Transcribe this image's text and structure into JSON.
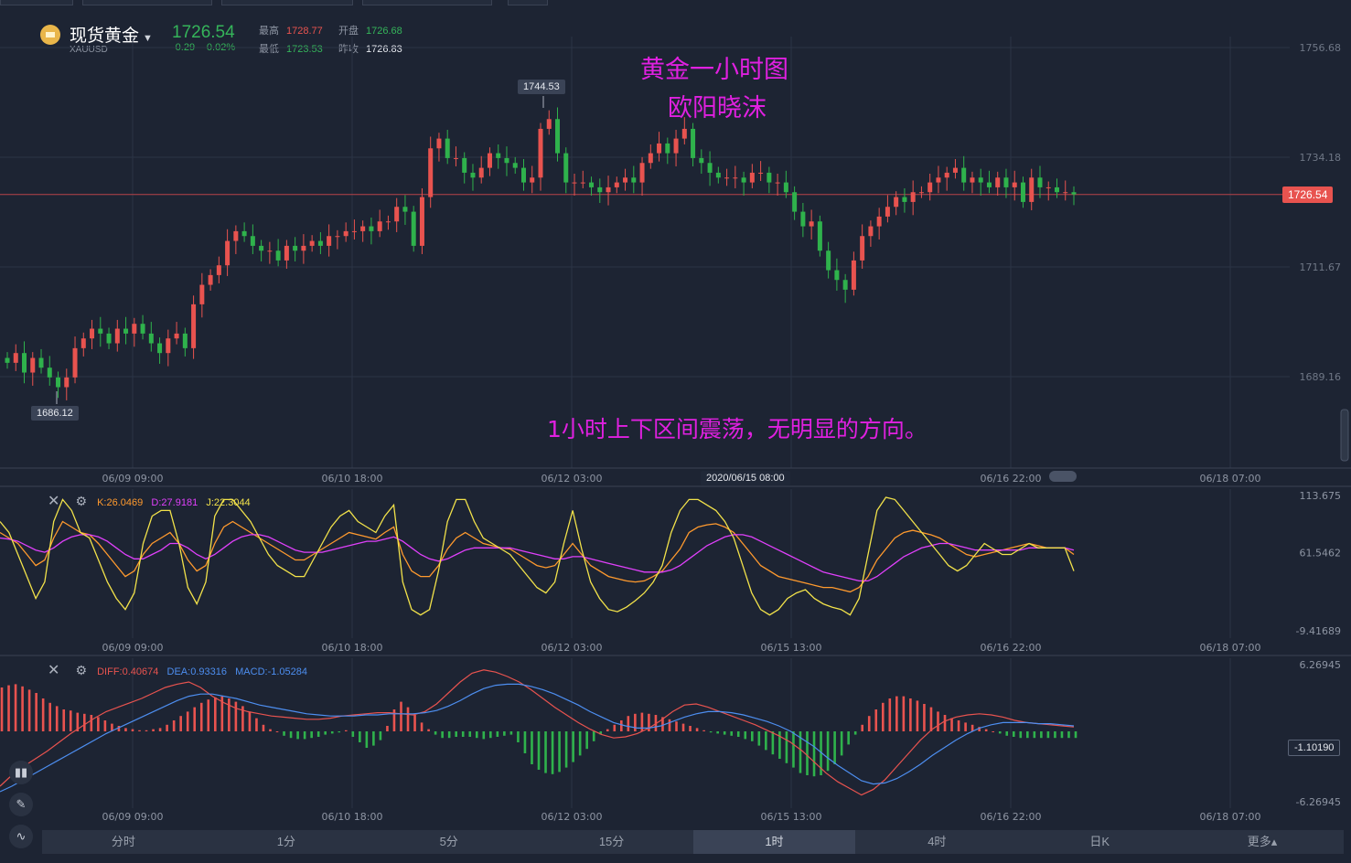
{
  "header": {
    "name": "现货黄金",
    "symbol": "XAUUSD",
    "price": "1726.54",
    "change": "-0.29",
    "change_pct": "-0.02%",
    "high_label": "最高",
    "high": "1728.77",
    "open_label": "开盘",
    "open": "1726.68",
    "low_label": "最低",
    "low": "1723.53",
    "prev_label": "昨收",
    "prev": "1726.83"
  },
  "annotations": {
    "title_line1": "黄金一小时图",
    "title_line2": "欧阳晓沫",
    "comment": "1小时上下区间震荡，无明显的方向。"
  },
  "price_axis": [
    "1756.68",
    "1734.18",
    "1711.67",
    "1689.16"
  ],
  "current_price_tag": "1726.54",
  "max_label": "1744.53",
  "min_label": "1686.12",
  "crosshair_time": "2020/06/15 08:00",
  "main_time_ticks": [
    "06/09 09:00",
    "06/10 18:00",
    "06/12 03:00",
    "",
    "06/16 22:00",
    "06/18 07:00"
  ],
  "sub_time_ticks": [
    "06/09 09:00",
    "06/10 18:00",
    "06/12 03:00",
    "06/15 13:00",
    "06/16 22:00",
    "06/18 07:00"
  ],
  "kdj": {
    "k": "K:26.0469",
    "d": "D:27.9181",
    "j": "J:22.3044",
    "axis": [
      "113.675",
      "61.5462",
      "-9.41689"
    ]
  },
  "macd": {
    "diff": "DIFF:0.40674",
    "dea": "DEA:0.93316",
    "macd": "MACD:-1.05284",
    "axis": [
      "6.26945",
      "-1.10190",
      "-6.26945"
    ]
  },
  "tabs": [
    "分时",
    "1分",
    "5分",
    "15分",
    "1时",
    "4时",
    "日K",
    "更多▴"
  ],
  "active_tab": "1时",
  "colors": {
    "up": "#e8534f",
    "down": "#2fb24c",
    "k": "#ff9a2e",
    "d": "#e040fb",
    "j": "#f2e24a",
    "diff": "#e8534f",
    "dea": "#4d8ef0",
    "annotation": "#e020e0"
  },
  "chart_data": [
    {
      "type": "candlestick",
      "title": "",
      "series_name": "XAUUSD 1H",
      "ylim": [
        1680,
        1760
      ],
      "last": 1726.54,
      "high_marker": 1744.53,
      "low_marker": 1686.12,
      "closes": [
        1692,
        1694,
        1690,
        1693,
        1691,
        1689,
        1687,
        1689,
        1695,
        1697,
        1699,
        1698,
        1696,
        1699,
        1698,
        1700,
        1698,
        1696,
        1694,
        1697,
        1698,
        1695,
        1704,
        1708,
        1710,
        1712,
        1717,
        1719,
        1718,
        1716,
        1715,
        1715,
        1713,
        1716,
        1715,
        1716,
        1717,
        1716,
        1718,
        1718,
        1719,
        1719,
        1720,
        1719,
        1721,
        1721,
        1724,
        1723,
        1716,
        1726,
        1736,
        1738,
        1734,
        1734,
        1731,
        1730,
        1732,
        1735,
        1734,
        1733,
        1732,
        1729,
        1730,
        1740,
        1742,
        1735,
        1729,
        1729,
        1729,
        1728,
        1727,
        1728,
        1729,
        1730,
        1729,
        1733,
        1735,
        1737,
        1735,
        1738,
        1740,
        1734,
        1733,
        1731,
        1730,
        1730,
        1730,
        1729,
        1731,
        1731,
        1729,
        1729,
        1727,
        1723,
        1720,
        1721,
        1715,
        1711,
        1709,
        1707,
        1713,
        1718,
        1720,
        1722,
        1724,
        1726,
        1725,
        1727,
        1727,
        1729,
        1730,
        1731,
        1732,
        1729,
        1730,
        1729,
        1728,
        1730,
        1728,
        1729,
        1725,
        1730,
        1728,
        1728,
        1727,
        1727,
        1726.54
      ],
      "note": "hourly candles approximated from the picture"
    },
    {
      "type": "line",
      "title": "KDJ",
      "ylim": [
        -9.41689,
        113.675
      ],
      "series": [
        {
          "name": "K",
          "values": [
            80,
            75,
            70,
            60,
            50,
            55,
            75,
            90,
            85,
            80,
            78,
            70,
            60,
            50,
            40,
            45,
            60,
            70,
            75,
            80,
            70,
            55,
            45,
            50,
            70,
            85,
            90,
            85,
            80,
            75,
            70,
            65,
            60,
            55,
            55,
            60,
            65,
            70,
            75,
            80,
            78,
            76,
            74,
            80,
            85,
            60,
            45,
            40,
            40,
            50,
            65,
            75,
            80,
            75,
            70,
            68,
            66,
            65,
            60,
            55,
            50,
            48,
            50,
            60,
            70,
            60,
            50,
            45,
            40,
            38,
            36,
            35,
            36,
            40,
            45,
            55,
            65,
            80,
            85,
            87,
            88,
            85,
            80,
            70,
            60,
            50,
            45,
            40,
            38,
            36,
            34,
            32,
            30,
            30,
            28,
            26,
            30,
            40,
            55,
            65,
            75,
            80,
            82,
            80,
            78,
            75,
            70,
            65,
            60,
            58,
            60,
            62,
            64,
            66,
            68,
            70,
            68,
            66,
            66,
            66,
            60
          ]
        },
        {
          "name": "D",
          "values": [
            75,
            74,
            72,
            68,
            64,
            62,
            66,
            72,
            76,
            78,
            78,
            76,
            72,
            66,
            60,
            56,
            56,
            60,
            64,
            70,
            70,
            66,
            60,
            56,
            60,
            66,
            72,
            76,
            78,
            78,
            76,
            72,
            68,
            64,
            62,
            62,
            62,
            64,
            66,
            68,
            70,
            72,
            72,
            74,
            76,
            72,
            66,
            60,
            56,
            54,
            56,
            60,
            64,
            66,
            66,
            66,
            66,
            66,
            64,
            62,
            60,
            58,
            56,
            56,
            58,
            58,
            56,
            54,
            52,
            50,
            48,
            46,
            44,
            44,
            44,
            46,
            50,
            56,
            62,
            68,
            72,
            76,
            78,
            78,
            76,
            72,
            68,
            64,
            60,
            56,
            52,
            48,
            44,
            42,
            40,
            38,
            36,
            36,
            40,
            46,
            52,
            58,
            62,
            66,
            68,
            70,
            70,
            68,
            66,
            64,
            64,
            64,
            64,
            64,
            64,
            66,
            66,
            66,
            66,
            66,
            64
          ]
        },
        {
          "name": "J",
          "values": [
            90,
            80,
            60,
            40,
            20,
            35,
            90,
            110,
            100,
            80,
            75,
            55,
            35,
            20,
            10,
            25,
            70,
            95,
            100,
            100,
            70,
            30,
            15,
            35,
            95,
            110,
            110,
            100,
            90,
            75,
            60,
            50,
            45,
            40,
            40,
            55,
            70,
            85,
            95,
            100,
            90,
            85,
            80,
            95,
            105,
            35,
            10,
            5,
            10,
            45,
            90,
            110,
            110,
            90,
            75,
            70,
            65,
            60,
            50,
            40,
            30,
            25,
            35,
            70,
            100,
            65,
            35,
            20,
            10,
            8,
            12,
            18,
            25,
            35,
            50,
            80,
            100,
            110,
            110,
            105,
            100,
            90,
            75,
            50,
            25,
            10,
            5,
            10,
            20,
            25,
            28,
            20,
            15,
            12,
            10,
            5,
            20,
            60,
            100,
            112,
            110,
            100,
            90,
            80,
            70,
            60,
            50,
            45,
            50,
            60,
            70,
            65,
            60,
            60,
            65,
            70,
            66,
            66,
            66,
            66,
            45
          ]
        }
      ]
    },
    {
      "type": "line+bar",
      "title": "MACD",
      "ylim": [
        -6.26945,
        6.26945
      ],
      "series": [
        {
          "name": "DIFF",
          "values": [
            -5,
            -4,
            -3.2,
            -2.5,
            -1.8,
            -1,
            -0.2,
            0.5,
            1.2,
            1.8,
            2.2,
            2.6,
            3,
            3.5,
            4,
            4.3,
            4.5,
            4,
            3.2,
            2.6,
            2.1,
            1.8,
            1.6,
            1.4,
            1.3,
            1.2,
            1.1,
            1.1,
            1.2,
            1.4,
            1.5,
            1.6,
            1.7,
            1.7,
            1.6,
            1.5,
            1.8,
            2.5,
            3.5,
            4.5,
            5.3,
            5.6,
            5.4,
            5,
            4.5,
            3.8,
            3,
            2.2,
            1.5,
            0.8,
            0.2,
            -0.3,
            -0.6,
            -0.5,
            -0.2,
            0.3,
            1,
            1.8,
            2.4,
            2.5,
            2.2,
            1.8,
            1.4,
            1,
            0.6,
            0.1,
            -0.4,
            -1,
            -1.8,
            -2.8,
            -3.8,
            -4.6,
            -5.2,
            -5.8,
            -5.3,
            -4.4,
            -3.2,
            -2,
            -0.8,
            0.2,
            0.9,
            1.3,
            1.5,
            1.6,
            1.5,
            1.3,
            1,
            0.8,
            0.7,
            0.6,
            0.5,
            0.4
          ]
        },
        {
          "name": "DEA",
          "values": [
            -5.5,
            -5,
            -4.4,
            -3.8,
            -3.2,
            -2.6,
            -2,
            -1.4,
            -0.8,
            -0.2,
            0.3,
            0.8,
            1.3,
            1.8,
            2.3,
            2.8,
            3.2,
            3.4,
            3.4,
            3.2,
            3,
            2.7,
            2.4,
            2.2,
            2,
            1.8,
            1.6,
            1.5,
            1.4,
            1.4,
            1.4,
            1.5,
            1.5,
            1.6,
            1.6,
            1.6,
            1.7,
            1.9,
            2.3,
            2.8,
            3.4,
            3.9,
            4.2,
            4.3,
            4.3,
            4.1,
            3.8,
            3.4,
            2.9,
            2.4,
            1.8,
            1.3,
            0.8,
            0.5,
            0.3,
            0.3,
            0.5,
            0.9,
            1.3,
            1.6,
            1.8,
            1.8,
            1.7,
            1.5,
            1.2,
            0.9,
            0.5,
            0,
            -0.7,
            -1.4,
            -2.3,
            -3.1,
            -3.8,
            -4.5,
            -4.8,
            -4.7,
            -4.3,
            -3.7,
            -3,
            -2.2,
            -1.5,
            -0.8,
            -0.2,
            0.3,
            0.6,
            0.8,
            0.8,
            0.8,
            0.7,
            0.7,
            0.6,
            0.5
          ]
        },
        {
          "name": "MACD",
          "values": [
            4,
            4.2,
            4.3,
            4.1,
            3.8,
            3.5,
            3,
            2.6,
            2.3,
            2,
            1.9,
            1.7,
            1.6,
            1.5,
            1.3,
            1,
            0.7,
            0.5,
            0.3,
            0.2,
            0.1,
            0.1,
            0.2,
            0.3,
            0.6,
            1,
            1.4,
            1.8,
            2.2,
            2.6,
            2.9,
            3.1,
            3.2,
            3,
            2.7,
            2.3,
            1.8,
            1.2,
            0.6,
            0.2,
            0,
            -0.4,
            -0.6,
            -0.7,
            -0.7,
            -0.6,
            -0.5,
            -0.3,
            -0.2,
            -0.1,
            0.1,
            -0.5,
            -1,
            -1.5,
            -1.3,
            -0.8,
            0.5,
            2,
            2.7,
            2.2,
            1.5,
            0.8,
            0.2,
            -0.3,
            -0.6,
            -0.6,
            -0.5,
            -0.5,
            -0.5,
            -0.6,
            -0.7,
            -0.6,
            -0.5,
            -0.4,
            -0.3,
            -1,
            -2,
            -3,
            -3.5,
            -3.8,
            -3.9,
            -3.7,
            -3.3,
            -2.8,
            -2.2,
            -1.6,
            -0.9,
            -0.3,
            0.2,
            0.6,
            1,
            1.4,
            1.6,
            1.7,
            1.6,
            1.5,
            1.3,
            1.1,
            0.9,
            0.7,
            0.5,
            0.3,
            0.1,
            -0.1,
            -0.2,
            -0.3,
            -0.4,
            -0.5,
            -0.7,
            -0.9,
            -1.3,
            -1.7,
            -2.1,
            -2.5,
            -2.9,
            -3.3,
            -3.8,
            -4,
            -4.1,
            -4,
            -3.6,
            -3,
            -2.2,
            -1.2,
            -0.3,
            0.6,
            1.4,
            2,
            2.6,
            3,
            3.2,
            3.2,
            3,
            2.8,
            2.5,
            2.2,
            1.8,
            1.5,
            1.2,
            1,
            0.8,
            0.6,
            0.4,
            0.2,
            0,
            -0.2,
            -0.4,
            -0.5,
            -0.6,
            -0.6,
            -0.6,
            -0.6,
            -0.6,
            -0.6,
            -0.6,
            -0.6,
            -0.6
          ]
        }
      ]
    }
  ]
}
